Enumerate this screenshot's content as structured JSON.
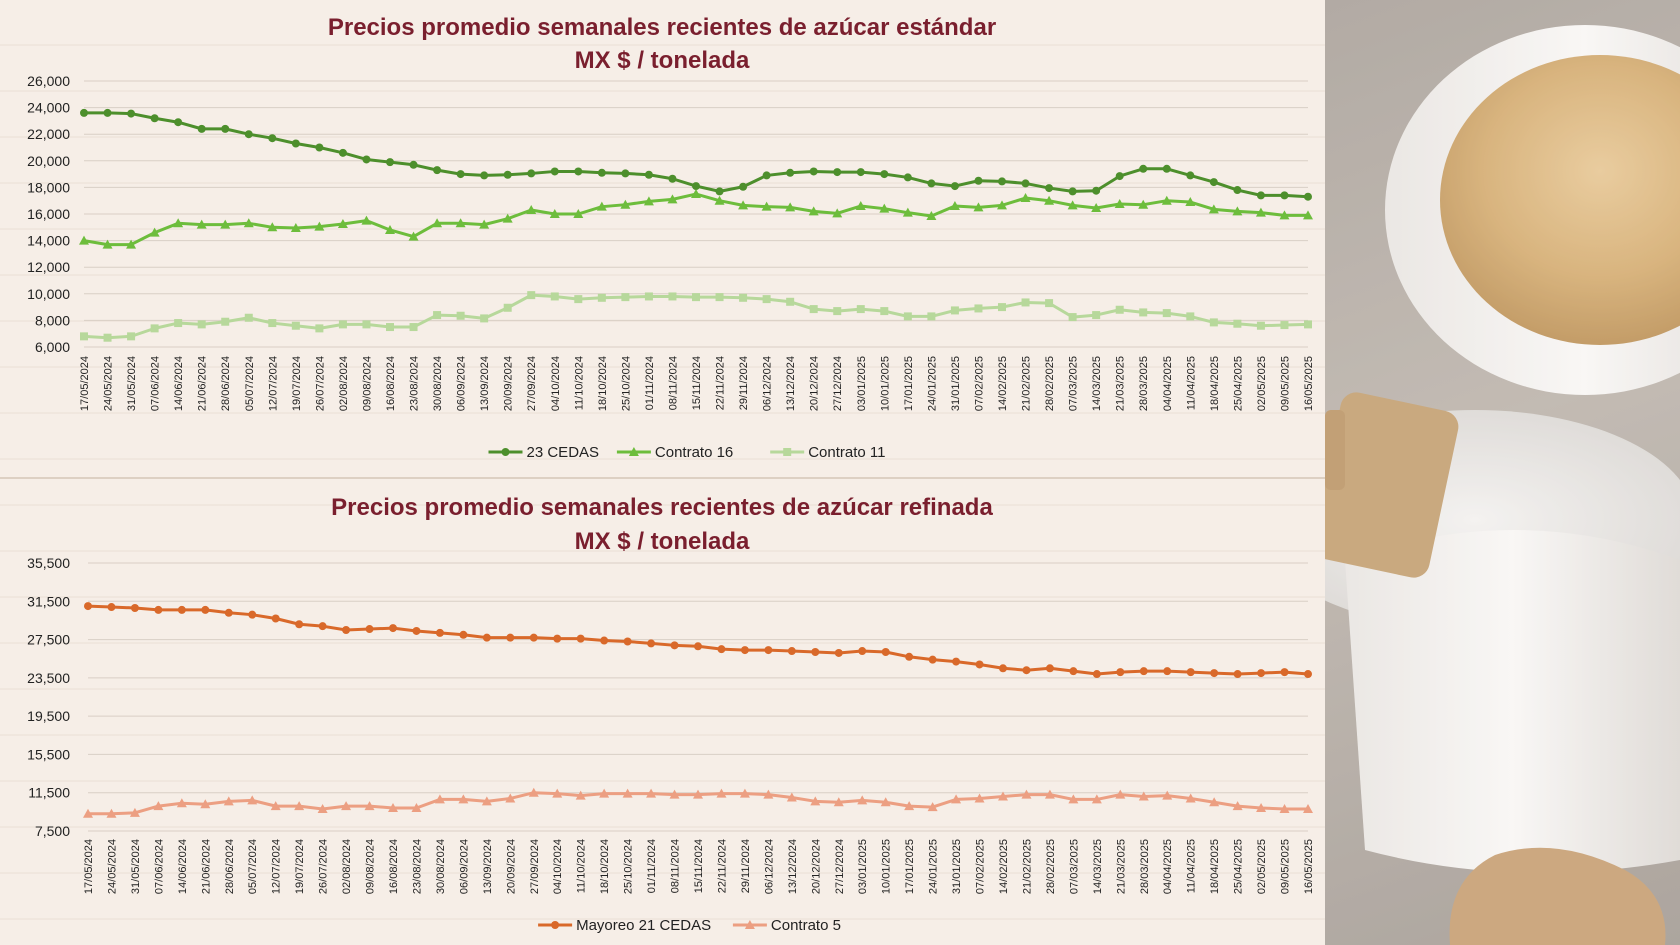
{
  "colors": {
    "title": "#7a1f2e",
    "cedas23": "#4d8f2c",
    "contrato16": "#6dbd3c",
    "contrato11": "#b7d89b",
    "mayoreo21": "#d9692a",
    "contrato5": "#ec9f82"
  },
  "chart_data": [
    {
      "type": "line",
      "title": "Precios promedio semanales recientes de azúcar estándar",
      "subtitle": "MX $ / tonelada",
      "yticks": [
        "6,000",
        "8,000",
        "10,000",
        "12,000",
        "14,000",
        "16,000",
        "18,000",
        "20,000",
        "22,000",
        "24,000",
        "26,000"
      ],
      "ylim": [
        6000,
        26000
      ],
      "legend_position": "bottom",
      "x": [
        "17/05/2024",
        "24/05/2024",
        "31/05/2024",
        "07/06/2024",
        "14/06/2024",
        "21/06/2024",
        "28/06/2024",
        "05/07/2024",
        "12/07/2024",
        "19/07/2024",
        "26/07/2024",
        "02/08/2024",
        "09/08/2024",
        "16/08/2024",
        "23/08/2024",
        "30/08/2024",
        "06/09/2024",
        "13/09/2024",
        "20/09/2024",
        "27/09/2024",
        "04/10/2024",
        "11/10/2024",
        "18/10/2024",
        "25/10/2024",
        "01/11/2024",
        "08/11/2024",
        "15/11/2024",
        "22/11/2024",
        "29/11/2024",
        "06/12/2024",
        "13/12/2024",
        "20/12/2024",
        "27/12/2024",
        "03/01/2025",
        "10/01/2025",
        "17/01/2025",
        "24/01/2025",
        "31/01/2025",
        "07/02/2025",
        "14/02/2025",
        "21/02/2025",
        "28/02/2025",
        "07/03/2025",
        "14/03/2025",
        "21/03/2025",
        "28/03/2025",
        "04/04/2025",
        "11/04/2025",
        "18/04/2025",
        "25/04/2025",
        "02/05/2025",
        "09/05/2025",
        "16/05/2025"
      ],
      "series": [
        {
          "name": "23 CEDAS",
          "marker": "circle",
          "color_key": "cedas23",
          "values": [
            23600,
            23600,
            23550,
            23200,
            22900,
            22400,
            22400,
            22000,
            21700,
            21300,
            21000,
            20600,
            20100,
            19900,
            19700,
            19300,
            19000,
            18900,
            18950,
            19050,
            19200,
            19200,
            19100,
            19050,
            18950,
            18650,
            18100,
            17700,
            18050,
            18900,
            19100,
            19200,
            19150,
            19150,
            19000,
            18750,
            18300,
            18100,
            18500,
            18450,
            18300,
            17950,
            17700,
            17750,
            18850,
            19400,
            19400,
            18900,
            18400,
            17800,
            17400,
            17400,
            17300
          ]
        },
        {
          "name": "Contrato 16",
          "marker": "triangle",
          "color_key": "contrato16",
          "values": [
            14000,
            13700,
            13700,
            14600,
            15300,
            15200,
            15200,
            15300,
            15000,
            14950,
            15050,
            15250,
            15500,
            14800,
            14300,
            15300,
            15300,
            15200,
            15650,
            16300,
            16000,
            16000,
            16550,
            16700,
            16950,
            17100,
            17500,
            17000,
            16650,
            16550,
            16500,
            16200,
            16050,
            16600,
            16400,
            16100,
            15850,
            16600,
            16500,
            16650,
            17200,
            17000,
            16650,
            16450,
            16750,
            16700,
            17000,
            16900,
            16350,
            16200,
            16100,
            15900,
            15900
          ]
        },
        {
          "name": "Contrato 11",
          "marker": "square",
          "color_key": "contrato11",
          "values": [
            6800,
            6700,
            6800,
            7400,
            7800,
            7700,
            7900,
            8200,
            7800,
            7600,
            7400,
            7700,
            7700,
            7500,
            7500,
            8400,
            8350,
            8150,
            8950,
            9900,
            9800,
            9600,
            9700,
            9750,
            9800,
            9800,
            9750,
            9750,
            9700,
            9600,
            9400,
            8850,
            8700,
            8850,
            8700,
            8300,
            8300,
            8750,
            8900,
            9000,
            9350,
            9300,
            8250,
            8400,
            8800,
            8600,
            8550,
            8300,
            7850,
            7750,
            7600,
            7650,
            7700
          ]
        }
      ]
    },
    {
      "type": "line",
      "title": "Precios promedio semanales recientes de azúcar refinada",
      "subtitle": "MX $ / tonelada",
      "yticks": [
        "7,500",
        "11,500",
        "15,500",
        "19,500",
        "23,500",
        "27,500",
        "31,500",
        "35,500"
      ],
      "ylim": [
        7500,
        35500
      ],
      "legend_position": "bottom",
      "x": [
        "17/05/2024",
        "24/05/2024",
        "31/05/2024",
        "07/06/2024",
        "14/06/2024",
        "21/06/2024",
        "28/06/2024",
        "05/07/2024",
        "12/07/2024",
        "19/07/2024",
        "26/07/2024",
        "02/08/2024",
        "09/08/2024",
        "16/08/2024",
        "23/08/2024",
        "30/08/2024",
        "06/09/2024",
        "13/09/2024",
        "20/09/2024",
        "27/09/2024",
        "04/10/2024",
        "11/10/2024",
        "18/10/2024",
        "25/10/2024",
        "01/11/2024",
        "08/11/2024",
        "15/11/2024",
        "22/11/2024",
        "29/11/2024",
        "06/12/2024",
        "13/12/2024",
        "20/12/2024",
        "27/12/2024",
        "03/01/2025",
        "10/01/2025",
        "17/01/2025",
        "24/01/2025",
        "31/01/2025",
        "07/02/2025",
        "14/02/2025",
        "21/02/2025",
        "28/02/2025",
        "07/03/2025",
        "14/03/2025",
        "21/03/2025",
        "28/03/2025",
        "04/04/2025",
        "11/04/2025",
        "18/04/2025",
        "25/04/2025",
        "02/05/2025",
        "09/05/2025",
        "16/05/2025"
      ],
      "series": [
        {
          "name": "Mayoreo 21 CEDAS",
          "marker": "circle",
          "color_key": "mayoreo21",
          "values": [
            31000,
            30900,
            30800,
            30600,
            30600,
            30600,
            30300,
            30100,
            29700,
            29100,
            28900,
            28500,
            28600,
            28700,
            28400,
            28200,
            28000,
            27700,
            27700,
            27700,
            27600,
            27600,
            27400,
            27300,
            27100,
            26900,
            26800,
            26500,
            26400,
            26400,
            26300,
            26200,
            26100,
            26300,
            26200,
            25700,
            25400,
            25200,
            24900,
            24500,
            24300,
            24500,
            24200,
            23900,
            24100,
            24200,
            24200,
            24100,
            24000,
            23900,
            24000,
            24100,
            23900
          ]
        },
        {
          "name": "Contrato 5",
          "marker": "triangle",
          "color_key": "contrato5",
          "values": [
            9300,
            9300,
            9400,
            10100,
            10400,
            10300,
            10600,
            10700,
            10100,
            10100,
            9800,
            10100,
            10100,
            9900,
            9900,
            10800,
            10800,
            10600,
            10900,
            11500,
            11400,
            11200,
            11400,
            11400,
            11400,
            11300,
            11300,
            11400,
            11400,
            11300,
            11000,
            10600,
            10500,
            10700,
            10500,
            10100,
            10000,
            10800,
            10900,
            11100,
            11300,
            11300,
            10800,
            10800,
            11300,
            11100,
            11200,
            10900,
            10500,
            10100,
            9900,
            9800,
            9800
          ]
        }
      ]
    }
  ]
}
